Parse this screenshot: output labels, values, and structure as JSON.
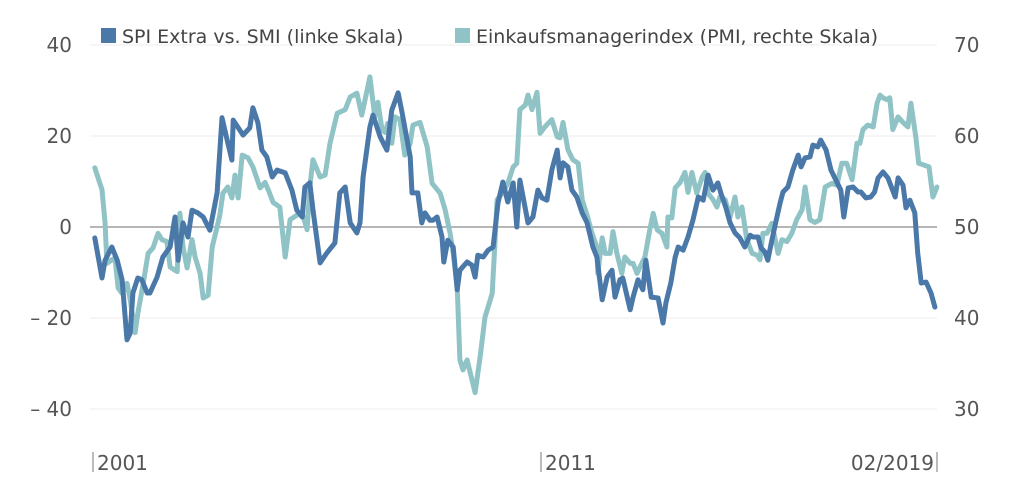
{
  "chart_data": {
    "type": "line",
    "title": "",
    "legend_position": "top",
    "grid": true,
    "xlabel": "",
    "x_tick_labels": [
      "2001",
      "2011",
      "02/2019"
    ],
    "x_tick_values": [
      2001,
      2011,
      2019.083
    ],
    "y_left": {
      "label": "",
      "ylim": [
        -40,
        40
      ],
      "ticks": [
        40,
        20,
        0,
        -20,
        -40
      ],
      "tick_labels": [
        "40",
        "20",
        "0",
        "– 20",
        "– 40"
      ]
    },
    "y_right": {
      "label": "",
      "ylim": [
        30,
        70
      ],
      "ticks": [
        70,
        60,
        50,
        40,
        30
      ],
      "tick_labels": [
        "70",
        "60",
        "50",
        "40",
        "30"
      ]
    },
    "series": [
      {
        "name": "SPI Extra vs. SMI (linke Skala)",
        "axis": "left",
        "color": "#4a78a8",
        "x": [
          2001.04,
          2001.2,
          2001.27,
          2001.42,
          2001.54,
          2001.65,
          2001.76,
          2001.83,
          2001.89,
          2002.0,
          2002.09,
          2002.21,
          2002.27,
          2002.43,
          2002.56,
          2002.72,
          2002.83,
          2002.9,
          2003.01,
          2003.12,
          2003.21,
          2003.34,
          2003.46,
          2003.61,
          2003.77,
          2003.88,
          2004.01,
          2004.1,
          2004.13,
          2004.35,
          2004.5,
          2004.57,
          2004.68,
          2004.77,
          2004.88,
          2005.0,
          2005.11,
          2005.29,
          2005.44,
          2005.55,
          2005.67,
          2005.73,
          2005.84,
          2005.91,
          2006.07,
          2006.22,
          2006.4,
          2006.51,
          2006.63,
          2006.74,
          2006.89,
          2006.96,
          2007.03,
          2007.18,
          2007.25,
          2007.41,
          2007.56,
          2007.67,
          2007.81,
          2007.9,
          2008.08,
          2008.12,
          2008.25,
          2008.34,
          2008.41,
          2008.52,
          2008.59,
          2008.68,
          2008.79,
          2008.83,
          2008.92,
          2009.04,
          2009.13,
          2009.19,
          2009.35,
          2009.46,
          2009.53,
          2009.59,
          2009.71,
          2009.82,
          2009.93,
          2010.04,
          2010.15,
          2010.26,
          2010.38,
          2010.46,
          2010.53,
          2010.71,
          2010.82,
          2010.93,
          2011.02,
          2011.12,
          2011.22,
          2011.33,
          2011.39,
          2011.45,
          2011.55,
          2011.63,
          2011.73,
          2011.84,
          2011.94,
          2012.06,
          2012.14,
          2012.25,
          2012.35,
          2012.45,
          2012.51,
          2012.61,
          2012.67,
          2012.82,
          2012.88,
          2012.98,
          2013.08,
          2013.14,
          2013.25,
          2013.39,
          2013.49,
          2013.55,
          2013.65,
          2013.74,
          2013.8,
          2013.9,
          2014.0,
          2014.1,
          2014.21,
          2014.31,
          2014.41,
          2014.51,
          2014.61,
          2014.67,
          2014.77,
          2014.86,
          2014.96,
          2015.06,
          2015.16,
          2015.27,
          2015.33,
          2015.43,
          2015.49,
          2015.57,
          2015.63,
          2015.7,
          2015.8,
          2015.88,
          2015.94,
          2016.04,
          2016.14,
          2016.25,
          2016.31,
          2016.39,
          2016.49,
          2016.55,
          2016.65,
          2016.71,
          2016.82,
          2016.92,
          2017.02,
          2017.12,
          2017.18,
          2017.27,
          2017.37,
          2017.47,
          2017.53,
          2017.63,
          2017.73,
          2017.81,
          2017.88,
          2017.98,
          2018.08,
          2018.23,
          2018.29,
          2018.39,
          2018.45,
          2018.53,
          2018.63,
          2018.69,
          2018.76,
          2018.86,
          2018.96,
          2019.04
        ],
        "values": [
          -2.4,
          -11.2,
          -7.3,
          -4.4,
          -7.3,
          -11.6,
          -24.8,
          -23.3,
          -14.5,
          -11.2,
          -11.6,
          -14.5,
          -14.5,
          -11.0,
          -6.6,
          -4.4,
          2.2,
          -7.3,
          0.9,
          -2.2,
          3.7,
          3.1,
          2.2,
          -0.7,
          7.5,
          24.0,
          18.5,
          14.7,
          23.5,
          20.2,
          21.8,
          26.2,
          22.9,
          16.9,
          15.4,
          11.0,
          12.5,
          11.9,
          8.1,
          3.7,
          2.2,
          8.8,
          9.7,
          3.7,
          -7.9,
          -5.7,
          -3.5,
          7.5,
          8.8,
          0.9,
          -1.3,
          0.9,
          11.0,
          22.0,
          24.6,
          19.8,
          16.9,
          25.7,
          29.5,
          25.1,
          15.4,
          7.5,
          7.5,
          0.9,
          3.1,
          1.5,
          1.5,
          2.2,
          -2.2,
          -7.7,
          -2.9,
          -4.4,
          -13.8,
          -9.5,
          -7.7,
          -8.4,
          -11.0,
          -6.2,
          -6.6,
          -5.1,
          -4.4,
          5.3,
          9.9,
          5.5,
          9.7,
          0,
          10.3,
          0.9,
          2.2,
          8.1,
          6.4,
          5.9,
          12.5,
          16.9,
          10.8,
          14.1,
          13.2,
          8.1,
          6.6,
          3.1,
          0.9,
          -4.4,
          -6.6,
          -16.0,
          -11.0,
          -9.5,
          -15.4,
          -11.6,
          -11.2,
          -18.2,
          -15.4,
          -11.6,
          -13.8,
          -7.3,
          -15.4,
          -15.6,
          -21.1,
          -16.7,
          -12.3,
          -6.6,
          -4.4,
          -5.1,
          -2.2,
          1.5,
          6.6,
          5.9,
          11.4,
          8.1,
          9.7,
          7.5,
          4.4,
          0.9,
          -1.3,
          -2.4,
          -4.4,
          -1.8,
          -2.2,
          -2.2,
          -4.6,
          -5.5,
          -7.3,
          -3.5,
          1.5,
          5.3,
          7.7,
          8.8,
          12.5,
          15.8,
          13.2,
          15.2,
          15.4,
          18.0,
          17.6,
          19.1,
          16.9,
          12.5,
          10.3,
          8.1,
          2.2,
          8.6,
          8.8,
          7.7,
          7.7,
          6.4,
          6.6,
          7.7,
          10.8,
          12.1,
          10.8,
          6.6,
          10.8,
          9.2,
          4.2,
          5.9,
          3.1,
          -5.7,
          -12.3,
          -12.1,
          -14.5,
          -17.6
        ]
      },
      {
        "name": "Einkaufsmanagerindex (PMI, rechte Skala)",
        "axis": "right",
        "color": "#8fc3c6",
        "x": [
          2001.04,
          2001.2,
          2001.27,
          2001.31,
          2001.42,
          2001.49,
          2001.56,
          2001.65,
          2001.76,
          2001.83,
          2001.94,
          2002.0,
          2002.12,
          2002.23,
          2002.34,
          2002.45,
          2002.54,
          2002.65,
          2002.72,
          2002.88,
          2002.94,
          2003.01,
          2003.1,
          2003.21,
          2003.28,
          2003.39,
          2003.46,
          2003.57,
          2003.66,
          2003.77,
          2003.83,
          2003.9,
          2004.01,
          2004.1,
          2004.17,
          2004.24,
          2004.33,
          2004.46,
          2004.57,
          2004.73,
          2004.84,
          2004.91,
          2005.02,
          2005.17,
          2005.29,
          2005.4,
          2005.55,
          2005.67,
          2005.78,
          2005.84,
          2005.91,
          2006.07,
          2006.18,
          2006.29,
          2006.45,
          2006.63,
          2006.74,
          2006.89,
          2007.0,
          2007.18,
          2007.29,
          2007.36,
          2007.45,
          2007.52,
          2007.58,
          2007.67,
          2007.74,
          2007.85,
          2007.96,
          2008.08,
          2008.14,
          2008.3,
          2008.46,
          2008.57,
          2008.75,
          2008.86,
          2008.97,
          2009.04,
          2009.13,
          2009.19,
          2009.26,
          2009.35,
          2009.42,
          2009.53,
          2009.64,
          2009.75,
          2009.91,
          2009.97,
          2010.02,
          2010.15,
          2010.26,
          2010.38,
          2010.46,
          2010.53,
          2010.65,
          2010.71,
          2010.8,
          2010.91,
          2010.98,
          2011.08,
          2011.22,
          2011.33,
          2011.39,
          2011.45,
          2011.55,
          2011.65,
          2011.76,
          2011.84,
          2011.94,
          2012.04,
          2012.14,
          2012.16,
          2012.25,
          2012.31,
          2012.41,
          2012.47,
          2012.55,
          2012.65,
          2012.71,
          2012.82,
          2012.88,
          2012.96,
          2013.02,
          2013.12,
          2013.22,
          2013.29,
          2013.37,
          2013.47,
          2013.57,
          2013.59,
          2013.67,
          2013.74,
          2013.84,
          2013.94,
          2014.0,
          2014.08,
          2014.18,
          2014.29,
          2014.35,
          2014.41,
          2014.51,
          2014.59,
          2014.65,
          2014.76,
          2014.86,
          2014.96,
          2015.02,
          2015.1,
          2015.2,
          2015.31,
          2015.41,
          2015.47,
          2015.53,
          2015.61,
          2015.71,
          2015.78,
          2015.84,
          2015.92,
          2016.02,
          2016.12,
          2016.22,
          2016.33,
          2016.39,
          2016.49,
          2016.59,
          2016.69,
          2016.8,
          2016.94,
          2017.04,
          2017.14,
          2017.24,
          2017.35,
          2017.45,
          2017.51,
          2017.57,
          2017.67,
          2017.78,
          2017.86,
          2017.92,
          2017.98,
          2018.06,
          2018.12,
          2018.18,
          2018.29,
          2018.39,
          2018.49,
          2018.55,
          2018.65,
          2018.71,
          2018.82,
          2018.92,
          2019.0,
          2019.06,
          2019.08
        ],
        "values": [
          56.5,
          54.1,
          50.4,
          46.0,
          46.4,
          46.6,
          43.3,
          42.7,
          43.8,
          42.0,
          38.4,
          40.5,
          43.8,
          47.1,
          47.7,
          49.3,
          48.6,
          48.4,
          45.6,
          45.1,
          51.5,
          47.8,
          45.5,
          48.6,
          46.7,
          44.9,
          42.2,
          42.5,
          47.8,
          50.0,
          51.3,
          53.7,
          54.4,
          53.2,
          55.7,
          53.2,
          57.9,
          57.6,
          56.6,
          54.3,
          54.9,
          54.1,
          52.7,
          52.2,
          46.7,
          50.8,
          51.3,
          51.5,
          49.7,
          54.4,
          57.4,
          55.5,
          55.7,
          59.2,
          62.5,
          62.9,
          64.3,
          64.7,
          62.3,
          66.5,
          62.1,
          63.7,
          60.7,
          60.4,
          61.4,
          59.2,
          62.1,
          61.8,
          57.9,
          59.2,
          61.2,
          61.5,
          58.8,
          54.8,
          53.7,
          51.9,
          49.3,
          47.1,
          43.4,
          35.4,
          34.3,
          35.4,
          34.0,
          31.8,
          35.7,
          40.1,
          42.7,
          48.2,
          53.0,
          53.8,
          54.8,
          56.6,
          57.0,
          62.9,
          63.4,
          64.5,
          62.9,
          64.8,
          60.3,
          61.0,
          61.8,
          59.9,
          59.8,
          61.5,
          58.5,
          57.4,
          57.0,
          53.0,
          51.3,
          49.3,
          47.8,
          44.9,
          48.8,
          47.1,
          47.1,
          49.5,
          47.1,
          44.9,
          46.7,
          46.0,
          46.0,
          44.9,
          45.6,
          46.7,
          49.7,
          51.5,
          49.7,
          49.3,
          47.8,
          51.1,
          51.0,
          54.3,
          54.9,
          56.0,
          53.8,
          56.0,
          53.7,
          55.5,
          56.0,
          53.7,
          53.0,
          52.2,
          53.3,
          53.0,
          51.1,
          53.3,
          51.1,
          52.2,
          48.6,
          47.1,
          46.9,
          46.4,
          49.3,
          49.3,
          50.4,
          48.6,
          47.1,
          48.6,
          48.4,
          49.3,
          50.8,
          51.9,
          54.4,
          50.8,
          50.5,
          50.8,
          54.4,
          54.8,
          54.6,
          57.0,
          57.0,
          55.2,
          59.2,
          59.2,
          60.7,
          61.2,
          61.0,
          63.6,
          64.5,
          64.2,
          64.0,
          64.2,
          60.7,
          62.1,
          61.5,
          61.0,
          63.6,
          59.9,
          57.0,
          56.8,
          56.6,
          53.3,
          54.1,
          54.4
        ]
      }
    ]
  }
}
